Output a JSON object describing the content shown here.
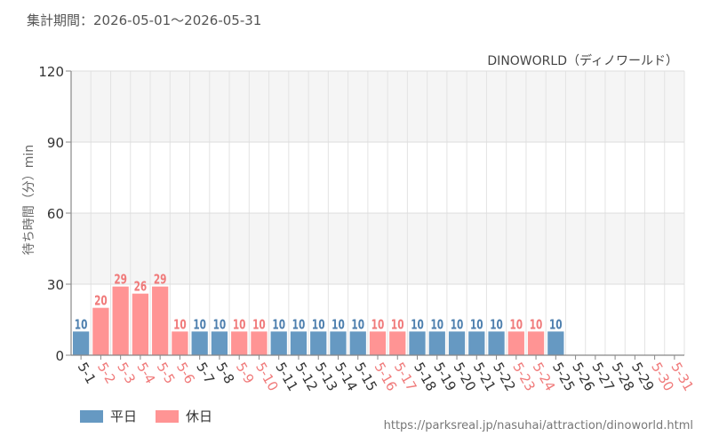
{
  "header": {
    "period": "集計期間：2026-05-01〜2026-05-31"
  },
  "footer": {
    "url": "https://parksreal.jp/nasuhai/attraction/dinoworld.html"
  },
  "legend": [
    {
      "label": "平日",
      "color": "#6699c2"
    },
    {
      "label": "休日",
      "color": "#ff9494"
    }
  ],
  "colors": {
    "weekday": "#6699c2",
    "holiday": "#ff9494",
    "weekday_label": "#4d7fae",
    "holiday_label": "#f07a7a",
    "weekday_tick": "#333333",
    "holiday_tick": "#f07a7a"
  },
  "chart_data": {
    "type": "bar",
    "title": "DINOWORLD（ディノワールド）",
    "ylabel": "待ち時間（分）min",
    "ylim": [
      0,
      120
    ],
    "yticks": [
      0,
      30,
      60,
      90,
      120
    ],
    "grid": true,
    "legend_position": "bottom-left",
    "categories": [
      "5-1",
      "5-2",
      "5-3",
      "5-4",
      "5-5",
      "5-6",
      "5-7",
      "5-8",
      "5-9",
      "5-10",
      "5-11",
      "5-12",
      "5-13",
      "5-14",
      "5-15",
      "5-16",
      "5-17",
      "5-18",
      "5-19",
      "5-20",
      "5-21",
      "5-22",
      "5-23",
      "5-24",
      "5-25",
      "5-26",
      "5-27",
      "5-28",
      "5-29",
      "5-30",
      "5-31"
    ],
    "values": [
      10,
      20,
      29,
      26,
      29,
      10,
      10,
      10,
      10,
      10,
      10,
      10,
      10,
      10,
      10,
      10,
      10,
      10,
      10,
      10,
      10,
      10,
      10,
      10,
      10,
      null,
      null,
      null,
      null,
      null,
      null
    ],
    "day_type": [
      "weekday",
      "holiday",
      "holiday",
      "holiday",
      "holiday",
      "holiday",
      "weekday",
      "weekday",
      "holiday",
      "holiday",
      "weekday",
      "weekday",
      "weekday",
      "weekday",
      "weekday",
      "holiday",
      "holiday",
      "weekday",
      "weekday",
      "weekday",
      "weekday",
      "weekday",
      "holiday",
      "holiday",
      "weekday",
      "weekday",
      "weekday",
      "weekday",
      "weekday",
      "holiday",
      "holiday"
    ]
  }
}
